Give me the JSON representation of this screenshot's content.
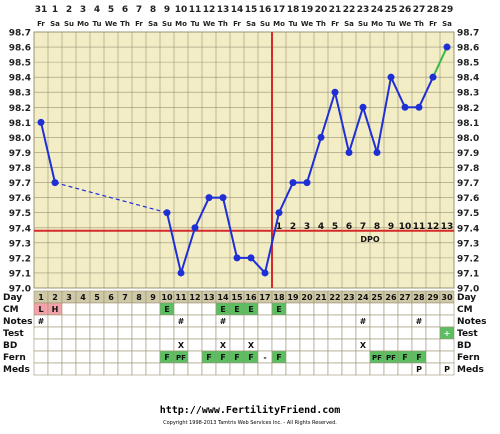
{
  "chart_data": {
    "type": "line",
    "title": "",
    "xlabel": "",
    "ylabel": "",
    "ylim": [
      97.0,
      98.7
    ],
    "y_ticks": [
      "97.0",
      "97.1",
      "97.2",
      "97.3",
      "97.4",
      "97.5",
      "97.6",
      "97.7",
      "97.8",
      "97.9",
      "98.0",
      "98.1",
      "98.2",
      "98.3",
      "98.4",
      "98.5",
      "98.6",
      "98.7"
    ],
    "top_dates": [
      "31",
      "1",
      "2",
      "3",
      "4",
      "5",
      "6",
      "7",
      "8",
      "9",
      "10",
      "11",
      "12",
      "13",
      "14",
      "15",
      "16",
      "17",
      "18",
      "19",
      "20",
      "21",
      "22",
      "23",
      "24",
      "25",
      "26",
      "27",
      "28",
      "29"
    ],
    "top_weekdays": [
      "Fr",
      "Sa",
      "Su",
      "Mo",
      "Tu",
      "We",
      "Th",
      "Fr",
      "Sa",
      "Su",
      "Mo",
      "Tu",
      "We",
      "Th",
      "Fr",
      "Sa",
      "Su",
      "Mo",
      "Tu",
      "We",
      "Th",
      "Fr",
      "Sa",
      "Su",
      "Mo",
      "Tu",
      "We",
      "Th",
      "Fr",
      "Sa"
    ],
    "cycle_days": [
      "1",
      "2",
      "3",
      "4",
      "5",
      "6",
      "7",
      "8",
      "9",
      "10",
      "11",
      "12",
      "13",
      "14",
      "15",
      "16",
      "17",
      "18",
      "19",
      "20",
      "21",
      "22",
      "23",
      "24",
      "25",
      "26",
      "27",
      "28",
      "29",
      "30"
    ],
    "series": [
      {
        "color": "#1f2fd6",
        "x": [
          1,
          2,
          10,
          11,
          12,
          13,
          14,
          15,
          16,
          17,
          18,
          19,
          20,
          21,
          22,
          23,
          24,
          25,
          26,
          27,
          28,
          29,
          30
        ],
        "y": [
          98.1,
          97.7,
          97.5,
          97.1,
          97.4,
          97.6,
          97.6,
          97.2,
          97.2,
          97.1,
          97.5,
          97.7,
          97.7,
          98.0,
          98.3,
          97.9,
          98.2,
          97.9,
          98.4,
          98.2,
          98.2,
          98.4,
          98.6
        ]
      }
    ],
    "dashed_segment": [
      1,
      2
    ],
    "green_segment": [
      28,
      29
    ],
    "coverline": 97.38,
    "ovulation_day": 18,
    "dpo_label": "DPO",
    "dpo_start_day": 18,
    "dpo_values": [
      "1",
      "2",
      "3",
      "4",
      "5",
      "6",
      "7",
      "8",
      "9",
      "10",
      "11",
      "12",
      "13"
    ],
    "grid": true,
    "colors": {
      "grid_bg": "#f3edc6",
      "grid_line": "#9c9474",
      "data_line": "#1f2fd6",
      "marker": "#1f2fd6",
      "dashed_line": "#1f2fd6",
      "extra_segment": "#3cb84a",
      "coverline": "#d62a2a",
      "ovulation_line": "#d62a2a",
      "day_row_bg": "#cfc9a8",
      "fertile_green": "#5bbf62",
      "period_pink": "#f2a2a8"
    }
  },
  "rows": [
    {
      "label": "Day",
      "values": {}
    },
    {
      "label": "CM",
      "values": {
        "1": "L",
        "2": "H",
        "10": "E",
        "14": "E",
        "15": "E",
        "16": "E",
        "18": "E"
      }
    },
    {
      "label": "Notes",
      "values": {
        "1": "#",
        "11": "#",
        "14": "#",
        "24": "#",
        "28": "#"
      }
    },
    {
      "label": "Test",
      "values": {
        "30": "+"
      }
    },
    {
      "label": "BD",
      "values": {
        "11": "X",
        "14": "X",
        "16": "X",
        "24": "X"
      }
    },
    {
      "label": "Fern",
      "values": {
        "10": "F",
        "11": "PF",
        "13": "F",
        "14": "F",
        "15": "F",
        "16": "F",
        "17": "-",
        "18": "F",
        "25": "PF",
        "26": "PF",
        "27": "F",
        "28": "F"
      }
    },
    {
      "label": "Meds",
      "values": {
        "28": "P",
        "30": "P"
      }
    }
  ],
  "footer": {
    "url": "http://www.FertilityFriend.com",
    "copyright": "Copyright 1998-2013 Tamtris Web Services Inc. - All Rights Reserved."
  }
}
